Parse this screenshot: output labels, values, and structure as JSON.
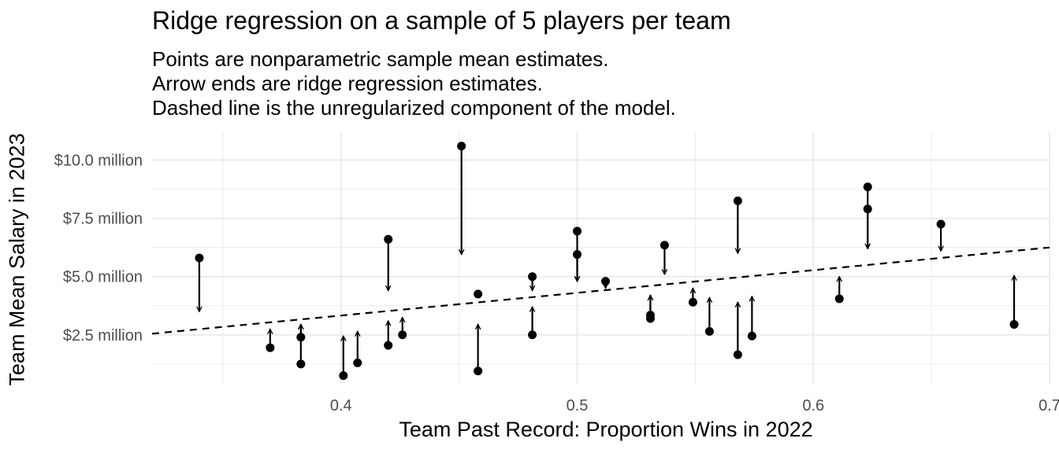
{
  "chart_data": {
    "type": "scatter",
    "title": "Ridge regression on a sample of 5 players per team",
    "subtitle": [
      "Points are nonparametric sample mean estimates.",
      "Arrow ends are ridge regression estimates.",
      "Dashed line is the unregularized component of the model."
    ],
    "xlabel": "Team Past Record: Proportion Wins in 2022",
    "ylabel": "Team Mean Salary in 2023",
    "xlim": [
      0.32,
      0.7
    ],
    "ylim": [
      0.4,
      11.2
    ],
    "x_ticks": [
      {
        "value": 0.4,
        "label": "0.4"
      },
      {
        "value": 0.5,
        "label": "0.5"
      },
      {
        "value": 0.6,
        "label": "0.6"
      },
      {
        "value": 0.7,
        "label": "0.7"
      }
    ],
    "y_ticks": [
      {
        "value": 2.5,
        "label": "$2.5 million"
      },
      {
        "value": 5.0,
        "label": "$5.0 million"
      },
      {
        "value": 7.5,
        "label": "$7.5 million"
      },
      {
        "value": 10.0,
        "label": "$10.0 million"
      }
    ],
    "grid": true,
    "dashed_line": {
      "x": [
        0.32,
        0.7
      ],
      "y": [
        2.55,
        6.25
      ]
    },
    "points": [
      {
        "x": 0.34,
        "mean": 5.8,
        "ridge": 3.5
      },
      {
        "x": 0.37,
        "mean": 1.95,
        "ridge": 2.75
      },
      {
        "x": 0.383,
        "mean": 2.4,
        "ridge": 2.95
      },
      {
        "x": 0.383,
        "mean": 1.25,
        "ridge": 2.95
      },
      {
        "x": 0.401,
        "mean": 0.75,
        "ridge": 2.45
      },
      {
        "x": 0.407,
        "mean": 1.3,
        "ridge": 2.65
      },
      {
        "x": 0.42,
        "mean": 6.6,
        "ridge": 4.4
      },
      {
        "x": 0.42,
        "mean": 2.05,
        "ridge": 3.1
      },
      {
        "x": 0.426,
        "mean": 2.5,
        "ridge": 3.25
      },
      {
        "x": 0.451,
        "mean": 10.6,
        "ridge": 5.95
      },
      {
        "x": 0.458,
        "mean": 4.25,
        "ridge": 4.15
      },
      {
        "x": 0.458,
        "mean": 0.95,
        "ridge": 2.95
      },
      {
        "x": 0.481,
        "mean": 5.0,
        "ridge": 4.4
      },
      {
        "x": 0.481,
        "mean": 2.5,
        "ridge": 3.7
      },
      {
        "x": 0.5,
        "mean": 6.95,
        "ridge": 4.8
      },
      {
        "x": 0.5,
        "mean": 5.95,
        "ridge": 4.8
      },
      {
        "x": 0.512,
        "mean": 4.8,
        "ridge": 4.5
      },
      {
        "x": 0.531,
        "mean": 3.35,
        "ridge": 4.2
      },
      {
        "x": 0.531,
        "mean": 3.2,
        "ridge": 4.2
      },
      {
        "x": 0.537,
        "mean": 6.35,
        "ridge": 5.1
      },
      {
        "x": 0.549,
        "mean": 3.9,
        "ridge": 4.5
      },
      {
        "x": 0.556,
        "mean": 2.65,
        "ridge": 4.1
      },
      {
        "x": 0.568,
        "mean": 8.25,
        "ridge": 6.0
      },
      {
        "x": 0.568,
        "mean": 1.65,
        "ridge": 3.9
      },
      {
        "x": 0.574,
        "mean": 2.45,
        "ridge": 4.15
      },
      {
        "x": 0.611,
        "mean": 4.05,
        "ridge": 5.0
      },
      {
        "x": 0.623,
        "mean": 8.85,
        "ridge": 6.2
      },
      {
        "x": 0.623,
        "mean": 7.9,
        "ridge": 6.2
      },
      {
        "x": 0.654,
        "mean": 7.25,
        "ridge": 6.1
      },
      {
        "x": 0.685,
        "mean": 2.95,
        "ridge": 5.05
      }
    ],
    "colors": {
      "grid": "#ebebeb",
      "marks": "#000000",
      "tick_text": "#4d4d4d"
    }
  }
}
